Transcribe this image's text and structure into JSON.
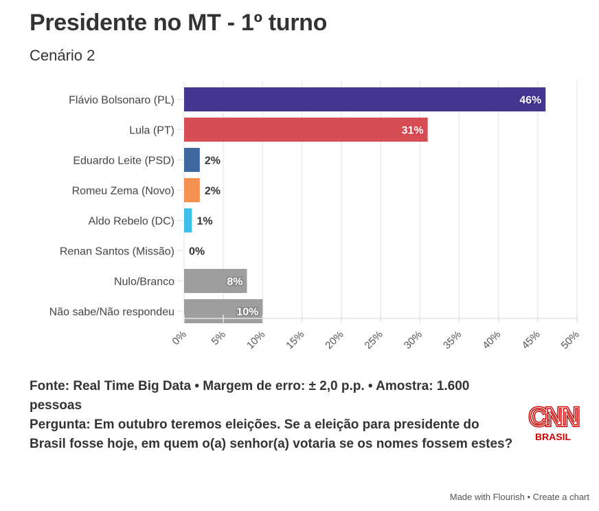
{
  "header": {
    "title": "Presidente no MT - 1º turno",
    "subtitle": "Cenário 2"
  },
  "chart_data": {
    "type": "bar",
    "orientation": "horizontal",
    "title": "Presidente no MT - 1º turno",
    "subtitle": "Cenário 2",
    "xlabel": "",
    "ylabel": "",
    "xlim": [
      0,
      50
    ],
    "x_ticks": [
      0,
      5,
      10,
      15,
      20,
      25,
      30,
      35,
      40,
      45,
      50
    ],
    "x_tick_format": "{v}%",
    "grid": true,
    "categories": [
      "Flávio Bolsonaro (PL)",
      "Lula (PT)",
      "Eduardo Leite (PSD)",
      "Romeu Zema (Novo)",
      "Aldo Rebelo (DC)",
      "Renan Santos (Missão)",
      "Nulo/Branco",
      "Não sabe/Não respondeu"
    ],
    "values": [
      46,
      31,
      2,
      2,
      1,
      0,
      8,
      10
    ],
    "value_labels": [
      "46%",
      "31%",
      "2%",
      "2%",
      "1%",
      "0%",
      "8%",
      "10%"
    ],
    "colors": [
      "#3b2a8a",
      "#d4434b",
      "#35619b",
      "#f48a48",
      "#33bbe8",
      "#999999",
      "#999999",
      "#999999"
    ],
    "label_inside": [
      true,
      true,
      false,
      false,
      false,
      false,
      true,
      true
    ]
  },
  "footer": {
    "source": "Fonte: Real Time Big Data • Margem de erro: ± 2,0 p.p. • Amostra: 1.600 pessoas",
    "question": "Pergunta: Em outubro teremos eleições. Se a eleição para presidente do Brasil fosse hoje, em quem o(a) senhor(a) votaria se os nomes fossem estes?"
  },
  "logo": {
    "name": "CNN",
    "sub": "BRASIL",
    "color": "#cc0000"
  },
  "credit": {
    "made_with": "Made with Flourish",
    "separator": " • ",
    "create": "Create a chart"
  }
}
